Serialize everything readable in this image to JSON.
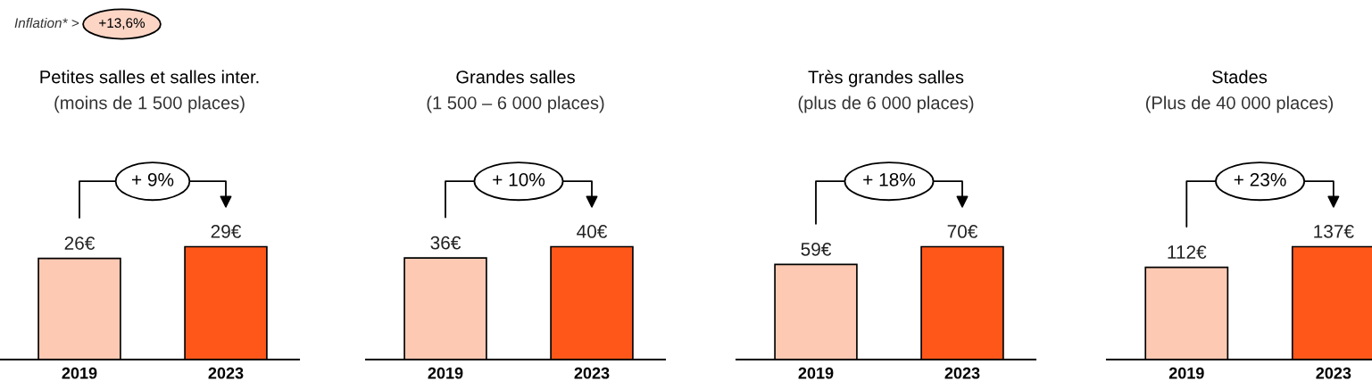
{
  "chart_data": [
    {
      "type": "bar",
      "title": "Petites salles et salles inter.",
      "subtitle": "(moins de 1 500 places)",
      "categories": [
        "2019",
        "2023"
      ],
      "values": [
        26,
        29
      ],
      "value_labels": [
        "26€",
        "29€"
      ],
      "colors": [
        "#fec9b3",
        "#fe5719"
      ],
      "tick_labels": "x",
      "grid": false,
      "legend": false,
      "annotations": [
        "Inflation* >",
        "+13,6%",
        "+ 9%"
      ]
    },
    {
      "type": "bar",
      "title": "Grandes salles",
      "subtitle": "(1 500 – 6 000 places)",
      "categories": [
        "2019",
        "2023"
      ],
      "values": [
        36,
        40
      ],
      "value_labels": [
        "36€",
        "40€"
      ],
      "colors": [
        "#fec9b3",
        "#fe5719"
      ],
      "tick_labels": "x",
      "grid": false,
      "legend": false,
      "annotations": [
        "+ 10%"
      ]
    },
    {
      "type": "bar",
      "title": "Très grandes salles",
      "subtitle": "(plus de 6 000 places)",
      "categories": [
        "2019",
        "2023"
      ],
      "values": [
        59,
        70
      ],
      "value_labels": [
        "59€",
        "70€"
      ],
      "colors": [
        "#fec9b3",
        "#fe5719"
      ],
      "tick_labels": "x",
      "grid": false,
      "legend": false,
      "annotations": [
        "+ 18%"
      ]
    },
    {
      "type": "bar",
      "title": "Stades",
      "subtitle": "(Plus de 40 000 places)",
      "categories": [
        "2019",
        "2023"
      ],
      "values": [
        112,
        137
      ],
      "value_labels": [
        "112€",
        "137€"
      ],
      "colors": [
        "#fec9b3",
        "#fe5719"
      ],
      "tick_labels": "x",
      "grid": false,
      "legend": false,
      "annotations": [
        "+ 23%"
      ]
    }
  ]
}
